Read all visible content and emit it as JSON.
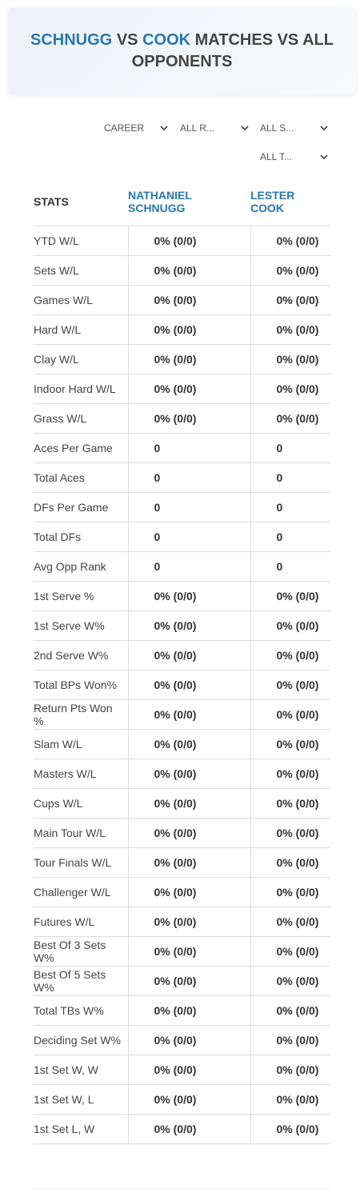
{
  "header": {
    "title": [
      "SCHNUGG",
      "VS",
      "COOK",
      "MATCHES VS ALL OPPONENTS"
    ]
  },
  "filters": [
    "CAREER",
    "ALL R...",
    "ALL S...",
    "ALL T..."
  ],
  "table": {
    "columns": [
      "STATS",
      "NATHANIEL SCHNUGG",
      "LESTER COOK"
    ],
    "rows": [
      [
        "YTD W/L",
        "0% (0/0)",
        "0% (0/0)"
      ],
      [
        "Sets W/L",
        "0% (0/0)",
        "0% (0/0)"
      ],
      [
        "Games W/L",
        "0% (0/0)",
        "0% (0/0)"
      ],
      [
        "Hard W/L",
        "0% (0/0)",
        "0% (0/0)"
      ],
      [
        "Clay W/L",
        "0% (0/0)",
        "0% (0/0)"
      ],
      [
        "Indoor Hard W/L",
        "0% (0/0)",
        "0% (0/0)"
      ],
      [
        "Grass W/L",
        "0% (0/0)",
        "0% (0/0)"
      ],
      [
        "Aces Per Game",
        "0",
        "0"
      ],
      [
        "Total Aces",
        "0",
        "0"
      ],
      [
        "DFs Per Game",
        "0",
        "0"
      ],
      [
        "Total DFs",
        "0",
        "0"
      ],
      [
        "Avg Opp Rank",
        "0",
        "0"
      ],
      [
        "1st Serve %",
        "0% (0/0)",
        "0% (0/0)"
      ],
      [
        "1st Serve W%",
        "0% (0/0)",
        "0% (0/0)"
      ],
      [
        "2nd Serve W%",
        "0% (0/0)",
        "0% (0/0)"
      ],
      [
        "Total BPs Won%",
        "0% (0/0)",
        "0% (0/0)"
      ],
      [
        "Return Pts Won %",
        "0% (0/0)",
        "0% (0/0)"
      ],
      [
        "Slam W/L",
        "0% (0/0)",
        "0% (0/0)"
      ],
      [
        "Masters W/L",
        "0% (0/0)",
        "0% (0/0)"
      ],
      [
        "Cups W/L",
        "0% (0/0)",
        "0% (0/0)"
      ],
      [
        "Main Tour W/L",
        "0% (0/0)",
        "0% (0/0)"
      ],
      [
        "Tour Finals W/L",
        "0% (0/0)",
        "0% (0/0)"
      ],
      [
        "Challenger W/L",
        "0% (0/0)",
        "0% (0/0)"
      ],
      [
        "Futures W/L",
        "0% (0/0)",
        "0% (0/0)"
      ],
      [
        "Best Of 3 Sets W%",
        "0% (0/0)",
        "0% (0/0)"
      ],
      [
        "Best Of 5 Sets W%",
        "0% (0/0)",
        "0% (0/0)"
      ],
      [
        "Total TBs W%",
        "0% (0/0)",
        "0% (0/0)"
      ],
      [
        "Deciding Set W%",
        "0% (0/0)",
        "0% (0/0)"
      ],
      [
        "1st Set W, W",
        "0% (0/0)",
        "0% (0/0)"
      ],
      [
        "1st Set W, L",
        "0% (0/0)",
        "0% (0/0)"
      ],
      [
        "1st Set L, W",
        "0% (0/0)",
        "0% (0/0)"
      ]
    ]
  }
}
